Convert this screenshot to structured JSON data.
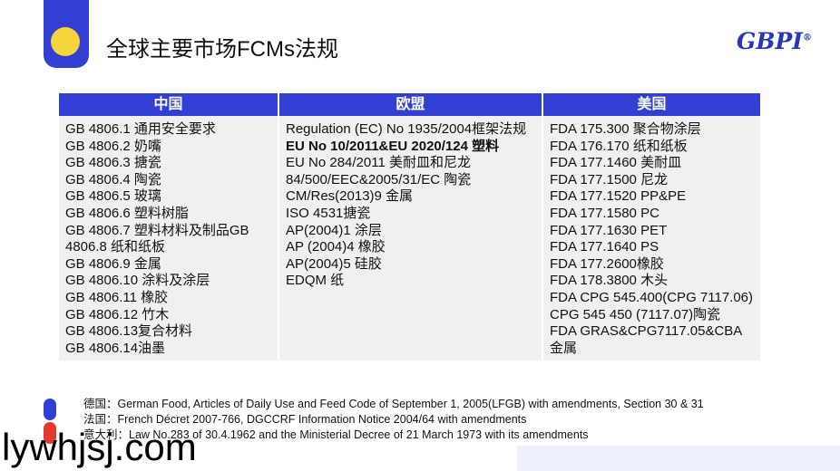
{
  "header": {
    "title": "全球主要市场FCMs法规",
    "logo": "GBPI",
    "logo_mark": "®"
  },
  "table": {
    "columns": [
      "中国",
      "欧盟",
      "美国"
    ],
    "cells": [
      [
        "GB 4806.1 通用安全要求",
        "GB 4806.2 奶嘴",
        "GB 4806.3 搪瓷",
        "GB 4806.4 陶瓷",
        "GB 4806.5 玻璃",
        "GB 4806.6 塑料树脂",
        "GB 4806.7 塑料材料及制品GB",
        "4806.8 纸和纸板",
        "GB 4806.9 金属",
        "GB 4806.10 涂料及涂层",
        "GB 4806.11 橡胶",
        "GB 4806.12 竹木",
        "GB 4806.13复合材料",
        "GB 4806.14油墨"
      ],
      [
        "Regulation (EC) No 1935/2004框架法规",
        "EU No 10/2011&EU 2020/124 塑料",
        "EU No 284/2011 美耐皿和尼龙",
        "84/500/EEC&2005/31/EC 陶瓷",
        "CM/Res(2013)9 金属",
        "ISO 4531搪瓷",
        "AP(2004)1 涂层",
        "AP (2004)4 橡胶",
        "AP(2004)5 硅胶",
        "EDQM 纸"
      ],
      [
        "FDA 175.300 聚合物涂层",
        "FDA 176.170 纸和纸板",
        "FDA 177.1460 美耐皿",
        "FDA 177.1500 尼龙",
        "FDA 177.1520 PP&PE",
        "FDA 177.1580 PC",
        "FDA 177.1630 PET",
        "FDA 177.1640 PS",
        "FDA 177.2600橡胶",
        "FDA 178.3800 木头",
        "FDA CPG 545.400(CPG 7117.06)",
        "CPG 545 450 (7117.07)陶瓷",
        "FDA GRAS&CPG7117.05&CBA",
        "金属"
      ]
    ]
  },
  "notes": [
    "德国：German Food, Articles of Daily Use and Feed Code of September 1, 2005(LFGB) with amendments, Section 30 & 31",
    "法国：French Décret 2007-766, DGCCRF Information Notice 2004/64 with amendments",
    "意大利：Law No.283 of 30.4.1962 and the Ministerial Decree of 21 March 1973 with its amendments"
  ],
  "watermark": "lywhjsj.com"
}
